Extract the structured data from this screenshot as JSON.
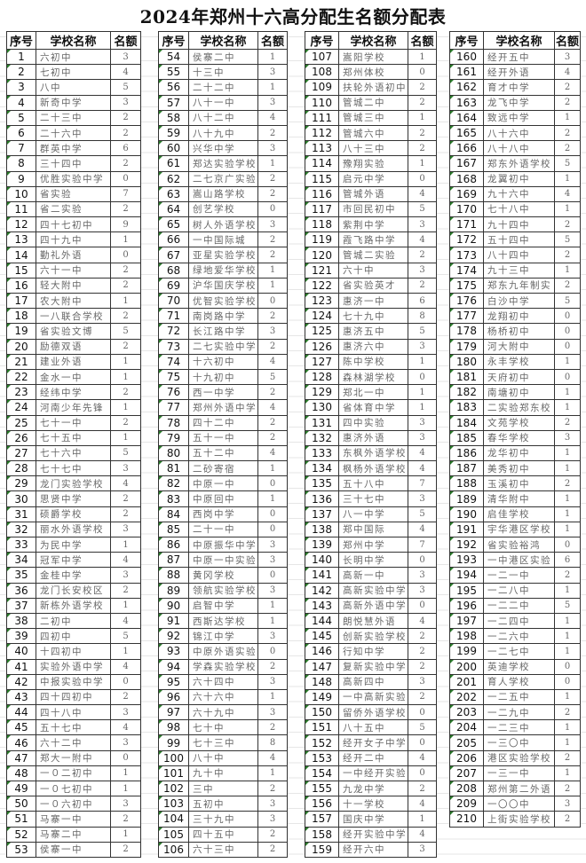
{
  "title": "2024年郑州十六高分配生名额分配表",
  "headers": [
    "序号",
    "学校名称",
    "名额"
  ],
  "tables": [
    {
      "rows": [
        [
          "1",
          "六初中",
          "3"
        ],
        [
          "2",
          "七初中",
          "4"
        ],
        [
          "3",
          "八中",
          "5"
        ],
        [
          "4",
          "新奇中学",
          "3"
        ],
        [
          "5",
          "二十三中",
          "2"
        ],
        [
          "6",
          "二十六中",
          "2"
        ],
        [
          "7",
          "群英中学",
          "6"
        ],
        [
          "8",
          "三十四中",
          "2"
        ],
        [
          "9",
          "优胜实验中学",
          "0"
        ],
        [
          "10",
          "省实验",
          "7"
        ],
        [
          "11",
          "省二实验",
          "2"
        ],
        [
          "12",
          "四十七初中",
          "9"
        ],
        [
          "13",
          "四十九中",
          "1"
        ],
        [
          "14",
          "勤礼外语",
          "0"
        ],
        [
          "15",
          "六十一中",
          "2"
        ],
        [
          "16",
          "轻大附中",
          "2"
        ],
        [
          "17",
          "农大附中",
          "1"
        ],
        [
          "18",
          "一八联合学校",
          "2"
        ],
        [
          "19",
          "省实验文博",
          "5"
        ],
        [
          "20",
          "励德双语",
          "2"
        ],
        [
          "21",
          "建业外语",
          "1"
        ],
        [
          "22",
          "金水一中",
          "1"
        ],
        [
          "23",
          "经纬中学",
          "2"
        ],
        [
          "24",
          "河南少年先锋",
          "1"
        ],
        [
          "25",
          "七十一中",
          "2"
        ],
        [
          "26",
          "七十五中",
          "1"
        ],
        [
          "27",
          "七十六中",
          "5"
        ],
        [
          "28",
          "七十七中",
          "3"
        ],
        [
          "29",
          "龙门实验学校",
          "4"
        ],
        [
          "30",
          "思贤中学",
          "2"
        ],
        [
          "31",
          "硕爵学校",
          "2"
        ],
        [
          "32",
          "丽水外语学校",
          "3"
        ],
        [
          "33",
          "为民中学",
          "1"
        ],
        [
          "34",
          "冠军中学",
          "4"
        ],
        [
          "35",
          "金桂中学",
          "3"
        ],
        [
          "36",
          "龙门长安校区",
          "2"
        ],
        [
          "37",
          "新栋外语学校",
          "1"
        ],
        [
          "38",
          "二初中",
          "4"
        ],
        [
          "39",
          "四初中",
          "5"
        ],
        [
          "40",
          "十四初中",
          "1"
        ],
        [
          "41",
          "实验外语中学",
          "4"
        ],
        [
          "42",
          "中报实验中学",
          "0"
        ],
        [
          "43",
          "四十四初中",
          "2"
        ],
        [
          "44",
          "四十八中",
          "3"
        ],
        [
          "45",
          "五十七中",
          "4"
        ],
        [
          "46",
          "六十二中",
          "3"
        ],
        [
          "47",
          "郑大一附中",
          "0"
        ],
        [
          "48",
          "一０二初中",
          "1"
        ],
        [
          "49",
          "一０七初中",
          "1"
        ],
        [
          "50",
          "一０六初中",
          "3"
        ],
        [
          "51",
          "马寨一中",
          "2"
        ],
        [
          "52",
          "马寨二中",
          "1"
        ],
        [
          "53",
          "侯寨一中",
          "2"
        ]
      ]
    },
    {
      "rows": [
        [
          "54",
          "侯寨二中",
          "1"
        ],
        [
          "55",
          "十三中",
          "3"
        ],
        [
          "56",
          "二十二中",
          "1"
        ],
        [
          "57",
          "八十一中",
          "3"
        ],
        [
          "58",
          "八十二中",
          "4"
        ],
        [
          "59",
          "八十九中",
          "2"
        ],
        [
          "60",
          "兴华中学",
          "3"
        ],
        [
          "61",
          "郑达实验学校",
          "1"
        ],
        [
          "62",
          "二七京广实验",
          "2"
        ],
        [
          "63",
          "嵩山路学校",
          "2"
        ],
        [
          "64",
          "创艺学校",
          "0"
        ],
        [
          "65",
          "树人外语学校",
          "3"
        ],
        [
          "66",
          "一中国际城",
          "2"
        ],
        [
          "67",
          "亚星实验学校",
          "2"
        ],
        [
          "68",
          "绿地爱华学校",
          "1"
        ],
        [
          "69",
          "沪华国庆学校",
          "1"
        ],
        [
          "70",
          "优智实验学校",
          "0"
        ],
        [
          "71",
          "南岗路中学",
          "2"
        ],
        [
          "72",
          "长江路中学",
          "3"
        ],
        [
          "73",
          "二七实验中学",
          "2"
        ],
        [
          "74",
          "十六初中",
          "4"
        ],
        [
          "75",
          "十九初中",
          "5"
        ],
        [
          "76",
          "西一中学",
          "2"
        ],
        [
          "77",
          "郑州外语中学",
          "4"
        ],
        [
          "78",
          "四十二中",
          "2"
        ],
        [
          "79",
          "五十一中",
          "2"
        ],
        [
          "80",
          "五十二中",
          "4"
        ],
        [
          "81",
          "二砂寄宿",
          "1"
        ],
        [
          "82",
          "中原一中",
          "0"
        ],
        [
          "83",
          "中原回中",
          "1"
        ],
        [
          "84",
          "西岗中学",
          "0"
        ],
        [
          "85",
          "二十一中",
          "0"
        ],
        [
          "86",
          "中原振华中学",
          "3"
        ],
        [
          "87",
          "中原一中实验",
          "3"
        ],
        [
          "88",
          "黄冈学校",
          "0"
        ],
        [
          "89",
          "领航实验学校",
          "3"
        ],
        [
          "90",
          "启智中学",
          "1"
        ],
        [
          "91",
          "西斯达学校",
          "1"
        ],
        [
          "92",
          "锦江中学",
          "3"
        ],
        [
          "93",
          "中原外语实验",
          "0"
        ],
        [
          "94",
          "学森实验学校",
          "2"
        ],
        [
          "95",
          "六十四中",
          "3"
        ],
        [
          "96",
          "六十六中",
          "1"
        ],
        [
          "97",
          "六十九中",
          "3"
        ],
        [
          "98",
          "七十中",
          "2"
        ],
        [
          "99",
          "七十三中",
          "8"
        ],
        [
          "100",
          "八十中",
          "4"
        ],
        [
          "101",
          "九十中",
          "1"
        ],
        [
          "102",
          "三中",
          "2"
        ],
        [
          "103",
          "五初中",
          "3"
        ],
        [
          "104",
          "三十九中",
          "3"
        ],
        [
          "105",
          "四十五中",
          "2"
        ],
        [
          "106",
          "六十三中",
          "2"
        ]
      ]
    },
    {
      "rows": [
        [
          "107",
          "嵩阳学校",
          "1"
        ],
        [
          "108",
          "郑州体校",
          "0"
        ],
        [
          "109",
          "扶轮外语初中",
          "2"
        ],
        [
          "110",
          "管城二中",
          "2"
        ],
        [
          "111",
          "管城三中",
          "1"
        ],
        [
          "112",
          "管城六中",
          "2"
        ],
        [
          "113",
          "八十三中",
          "2"
        ],
        [
          "114",
          "豫翔实验",
          "1"
        ],
        [
          "115",
          "启元中学",
          "0"
        ],
        [
          "116",
          "管城外语",
          "4"
        ],
        [
          "117",
          "市回民初中",
          "5"
        ],
        [
          "118",
          "紫荆中学",
          "3"
        ],
        [
          "119",
          "霞飞路中学",
          "4"
        ],
        [
          "120",
          "管城二实验",
          "2"
        ],
        [
          "121",
          "六十中",
          "3"
        ],
        [
          "122",
          "省实验英才",
          "2"
        ],
        [
          "123",
          "惠济一中",
          "6"
        ],
        [
          "124",
          "七十九中",
          "8"
        ],
        [
          "125",
          "惠济五中",
          "5"
        ],
        [
          "126",
          "惠济六中",
          "3"
        ],
        [
          "127",
          "陈中学校",
          "1"
        ],
        [
          "128",
          "森林湖学校",
          "0"
        ],
        [
          "129",
          "郑北一中",
          "1"
        ],
        [
          "130",
          "省体育中学",
          "1"
        ],
        [
          "131",
          "四中实验",
          "3"
        ],
        [
          "132",
          "惠济外语",
          "3"
        ],
        [
          "133",
          "东枫外语学校",
          "4"
        ],
        [
          "134",
          "枫杨外语学校",
          "4"
        ],
        [
          "135",
          "五十八中",
          "7"
        ],
        [
          "136",
          "三十七中",
          "3"
        ],
        [
          "137",
          "八一中学",
          "5"
        ],
        [
          "138",
          "郑中国际",
          "4"
        ],
        [
          "139",
          "郑州中学",
          "7"
        ],
        [
          "140",
          "长明中学",
          "0"
        ],
        [
          "141",
          "高新一中",
          "3"
        ],
        [
          "142",
          "高新实验中学",
          "3"
        ],
        [
          "143",
          "高新外语中学",
          "0"
        ],
        [
          "144",
          "朗悦慧外语",
          "4"
        ],
        [
          "145",
          "创新实验学校",
          "2"
        ],
        [
          "146",
          "行知中学",
          "2"
        ],
        [
          "147",
          "复新实验中学",
          "2"
        ],
        [
          "148",
          "高新四中",
          "3"
        ],
        [
          "149",
          "一中高新实验",
          "2"
        ],
        [
          "150",
          "留侨外语学校",
          "0"
        ],
        [
          "151",
          "八十五中",
          "5"
        ],
        [
          "152",
          "经开女子中学",
          "0"
        ],
        [
          "153",
          "经开二中",
          "4"
        ],
        [
          "154",
          "一中经开实验",
          "0"
        ],
        [
          "155",
          "九龙中学",
          "2"
        ],
        [
          "156",
          "十一学校",
          "4"
        ],
        [
          "157",
          "国庆中学",
          "1"
        ],
        [
          "158",
          "经开实验中学",
          "4"
        ],
        [
          "159",
          "经开六中",
          "3"
        ]
      ]
    },
    {
      "rows": [
        [
          "160",
          "经开五中",
          "3"
        ],
        [
          "161",
          "经开外语",
          "4"
        ],
        [
          "162",
          "育才中学",
          "2"
        ],
        [
          "163",
          "龙飞中学",
          "2"
        ],
        [
          "164",
          "致远中学",
          "1"
        ],
        [
          "165",
          "八十六中",
          "2"
        ],
        [
          "166",
          "八十八中",
          "2"
        ],
        [
          "167",
          "郑东外语学校",
          "5"
        ],
        [
          "168",
          "龙翼初中",
          "1"
        ],
        [
          "169",
          "九十六中",
          "4"
        ],
        [
          "170",
          "七十八中",
          "1"
        ],
        [
          "171",
          "九十四中",
          "2"
        ],
        [
          "172",
          "五十四中",
          "5"
        ],
        [
          "173",
          "八十四中",
          "2"
        ],
        [
          "174",
          "九十三中",
          "1"
        ],
        [
          "175",
          "郑东九年制实",
          "2"
        ],
        [
          "176",
          "白沙中学",
          "5"
        ],
        [
          "177",
          "龙翔初中",
          "0"
        ],
        [
          "178",
          "杨桥初中",
          "0"
        ],
        [
          "179",
          "河大附中",
          "0"
        ],
        [
          "180",
          "永丰学校",
          "1"
        ],
        [
          "181",
          "天府初中",
          "0"
        ],
        [
          "182",
          "南塘初中",
          "1"
        ],
        [
          "183",
          "二实验郑东校",
          "1"
        ],
        [
          "184",
          "文苑学校",
          "2"
        ],
        [
          "185",
          "春华学校",
          "3"
        ],
        [
          "186",
          "龙华初中",
          "1"
        ],
        [
          "187",
          "美秀初中",
          "1"
        ],
        [
          "188",
          "玉溪初中",
          "2"
        ],
        [
          "189",
          "清华附中",
          "1"
        ],
        [
          "190",
          "启佳学校",
          "1"
        ],
        [
          "191",
          "宇华港区学校",
          "1"
        ],
        [
          "192",
          "省实验裕鸿",
          "0"
        ],
        [
          "193",
          "一中港区实验",
          "6"
        ],
        [
          "194",
          "一二一中",
          "2"
        ],
        [
          "195",
          "一二八中",
          "1"
        ],
        [
          "196",
          "一二二中",
          "5"
        ],
        [
          "197",
          "一二四中",
          "1"
        ],
        [
          "198",
          "一二六中",
          "1"
        ],
        [
          "199",
          "一二七中",
          "1"
        ],
        [
          "200",
          "英迪学校",
          "0"
        ],
        [
          "201",
          "育人学校",
          "0"
        ],
        [
          "202",
          "一二五中",
          "1"
        ],
        [
          "203",
          "一二九中",
          "2"
        ],
        [
          "204",
          "一二三中",
          "1"
        ],
        [
          "205",
          "一三〇中",
          "1"
        ],
        [
          "206",
          "港区实验学校",
          "2"
        ],
        [
          "207",
          "一三一中",
          "1"
        ],
        [
          "208",
          "郑州第二外语",
          "2"
        ],
        [
          "209",
          "一〇〇中",
          "3"
        ],
        [
          "210",
          "上街实验学校",
          "2"
        ]
      ]
    }
  ]
}
